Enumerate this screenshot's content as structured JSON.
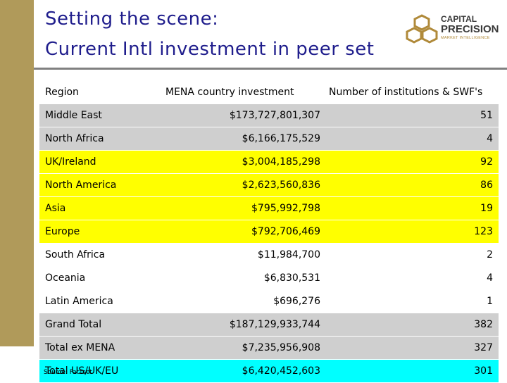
{
  "slide": {
    "title_line1": "Setting the scene:",
    "title_line2": "Current Intl investment in peer set",
    "source": "Source: Factset"
  },
  "logo": {
    "line1": "CAPITAL",
    "line2": "PRECISION",
    "line3": "MARKET INTELLIGENCE"
  },
  "colors": {
    "title": "#1f1d8c",
    "sidebar": "#b09a5a",
    "row_gray": "#cfcfcf",
    "row_yellow": "#ffff00",
    "row_cyan": "#00ffff"
  },
  "table": {
    "headers": [
      "Region",
      "MENA country investment",
      "Number of institutions & SWF's"
    ],
    "rows": [
      {
        "region": "Middle East",
        "investment": "$173,727,801,307",
        "count": "51"
      },
      {
        "region": "North Africa",
        "investment": "$6,166,175,529",
        "count": "4"
      },
      {
        "region": "UK/Ireland",
        "investment": "$3,004,185,298",
        "count": "92"
      },
      {
        "region": "North America",
        "investment": "$2,623,560,836",
        "count": "86"
      },
      {
        "region": "Asia",
        "investment": "$795,992,798",
        "count": "19"
      },
      {
        "region": "Europe",
        "investment": "$792,706,469",
        "count": "123"
      },
      {
        "region": "South Africa",
        "investment": "$11,984,700",
        "count": "2"
      },
      {
        "region": "Oceania",
        "investment": "$6,830,531",
        "count": "4"
      },
      {
        "region": "Latin America",
        "investment": "$696,276",
        "count": "1"
      },
      {
        "region": "Grand Total",
        "investment": "$187,129,933,744",
        "count": "382"
      },
      {
        "region": "Total ex MENA",
        "investment": "$7,235,956,908",
        "count": "327"
      },
      {
        "region": "Total US/UK/EU",
        "investment": "$6,420,452,603",
        "count": "301"
      }
    ]
  }
}
